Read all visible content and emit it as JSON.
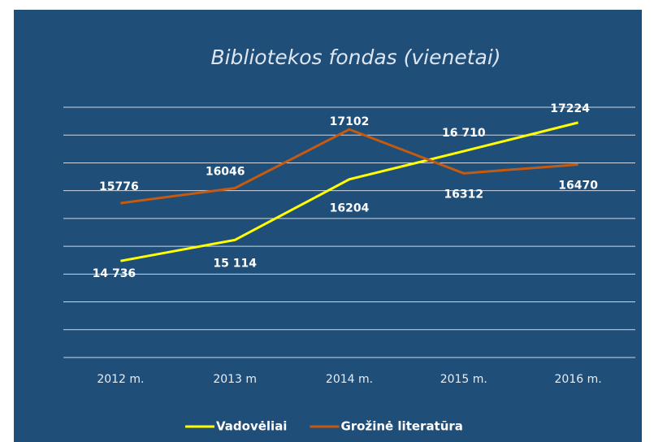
{
  "chart_data": {
    "type": "line",
    "title": "Bibliotekos fondas (vienetai)",
    "categories": [
      "2012 m.",
      "2013 m",
      "2014 m.",
      "2015 m.",
      "2016 m."
    ],
    "series": [
      {
        "name": "Vadovėliai",
        "color": "#ffff00",
        "values": [
          14736,
          15114,
          16204,
          16710,
          17224
        ],
        "value_labels": [
          "14 736",
          "15 114",
          "16204",
          "16 710",
          "17224"
        ]
      },
      {
        "name": "Grožinė literatūra",
        "color": "#c55a11",
        "values": [
          15776,
          16046,
          17102,
          16312,
          16470
        ]
      }
    ],
    "ylim": [
      13000,
      17500
    ],
    "yticks": [
      13000,
      13500,
      14000,
      14500,
      15000,
      15500,
      16000,
      16500,
      17000,
      17500
    ],
    "grid": true,
    "legend": "bottom"
  }
}
